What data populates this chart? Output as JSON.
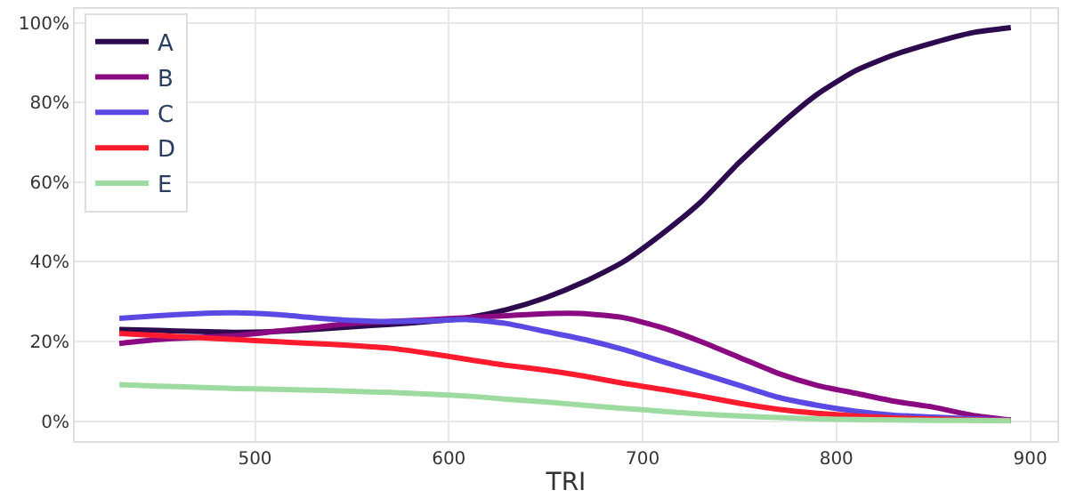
{
  "chart_data": {
    "type": "line",
    "xlabel": "TRI",
    "x": [
      430,
      450,
      470,
      490,
      510,
      530,
      550,
      570,
      590,
      610,
      630,
      650,
      670,
      690,
      710,
      730,
      750,
      770,
      790,
      810,
      830,
      850,
      870,
      890
    ],
    "series": [
      {
        "name": "A",
        "color": "#2d0a4e",
        "values": [
          23,
          22.8,
          22.5,
          22.3,
          22.5,
          23,
          23.7,
          24.3,
          25,
          26,
          28,
          31,
          35,
          40,
          47,
          55,
          65,
          74,
          82,
          88,
          92,
          95,
          97.5,
          98.8
        ]
      },
      {
        "name": "B",
        "color": "#8b0a82",
        "values": [
          19.5,
          20.5,
          21,
          21.5,
          22.5,
          23.5,
          24.5,
          25,
          25.5,
          26,
          26.5,
          27,
          27,
          26,
          23.5,
          20,
          16,
          12,
          9,
          7,
          5,
          3.5,
          1.5,
          0.3
        ]
      },
      {
        "name": "C",
        "color": "#5a4ae3",
        "values": [
          25.8,
          26.5,
          27,
          27.2,
          26.8,
          26,
          25.3,
          25,
          25.2,
          25.5,
          24.5,
          22.5,
          20.5,
          18,
          15,
          12,
          9,
          6,
          4,
          2.5,
          1.5,
          1,
          0.6,
          0.3
        ]
      },
      {
        "name": "D",
        "color": "#ff1a2e",
        "values": [
          22,
          21.5,
          21,
          20.5,
          20,
          19.5,
          19,
          18.3,
          17,
          15.5,
          14,
          12.8,
          11.3,
          9.5,
          8,
          6.3,
          4.5,
          3,
          2,
          1.3,
          0.8,
          0.5,
          0.3,
          0.2
        ]
      },
      {
        "name": "E",
        "color": "#9edba0",
        "values": [
          9.2,
          8.8,
          8.5,
          8.2,
          8,
          7.8,
          7.5,
          7.2,
          6.8,
          6.3,
          5.5,
          4.8,
          4,
          3.2,
          2.5,
          1.8,
          1.3,
          0.9,
          0.6,
          0.4,
          0.3,
          0.2,
          0.2,
          0.1
        ]
      }
    ],
    "xlim": [
      407,
      914
    ],
    "xticks": [
      500,
      600,
      700,
      800,
      900
    ],
    "ylim": [
      -5,
      103.5
    ],
    "yticks": [
      {
        "value": 0,
        "label": "0%"
      },
      {
        "value": 20,
        "label": "20%"
      },
      {
        "value": 40,
        "label": "40%"
      },
      {
        "value": 60,
        "label": "60%"
      },
      {
        "value": 80,
        "label": "80%"
      },
      {
        "value": 100,
        "label": "100%"
      }
    ],
    "grid": true,
    "legend": "top left",
    "marker": "none",
    "line_style": "solid"
  }
}
